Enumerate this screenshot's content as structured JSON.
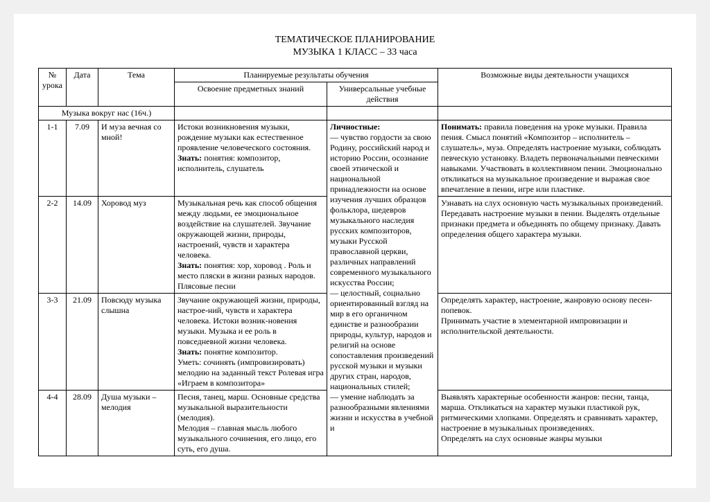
{
  "title_line1": "ТЕМАТИЧЕСКОЕ ПЛАНИРОВАНИЕ",
  "title_line2": "МУЗЫКА 1 КЛАСС – 33 часа",
  "headers": {
    "num": "№ урока",
    "date": "Дата",
    "theme": "Тема",
    "results": "Планируемые результаты обучения",
    "subject": "Освоение предметных знаний",
    "uud": "Универсальные учебные действия",
    "activities": "Возможные виды деятельности учащихся"
  },
  "section": "Музыка вокруг нас (16ч.)",
  "uud_personal_label": "Личностные:",
  "uud_personal_text": "— чувство гордости за свою Родину, российский народ и историю России, осознание своей этнической и национальной принадлежности на основе изучения лучших образцов фольклора, шедевров музыкального наследия русских композиторов, музыки Русской православной церкви, различных направлений современного музыкального искусства России;\n— целостный, социально ориентированный взгляд на мир в его органичном единстве и разнообразии природы, культур, народов и религий на основе сопоставления произведений русской музыки и музыки других стран, народов, национальных стилей;\n— умение наблюдать за разнообразными явлениями жизни и искусства в учебной и",
  "rows": [
    {
      "num": "1-1",
      "date": "7.09",
      "theme": "И муза вечная со мной!",
      "subject_plain": "Истоки возникновения музыки, рождение музыки как естественное проявление человеческого состояния.",
      "subject_know_label": "Знать:",
      "subject_know": " понятия: композитор, исполнитель, слушатель",
      "activities_label": "Понимать:",
      "activities": "  правила поведения на уроке музыки. Правила  пения. Смысл понятий «Композитор – исполнитель – слушатель», муза. Определять настроение музыки, соблюдать певческую установку. Владеть первоначальными певческими навыками. Участвовать в коллективном пении. Эмоционально откликаться на музыкальное произведение и выражая свое впечатление в пении, игре или пластике."
    },
    {
      "num": "2-2",
      "date": "14.09",
      "theme": "Хоровод муз",
      "subject_plain": "Музыкальная речь как способ общения между людьми, ее эмоциональное воздействие на слушателей. Звучание окружающей жизни, природы, настроений, чувств и характера человека.",
      "subject_know_label": "Знать:",
      "subject_know": " понятия: хор, хоровод . Роль и место пляски в жизни  разных народов. Плясовые песни",
      "activities_label": "",
      "activities": "Узнавать на слух основную часть музыкальных произведений. Передавать настроение музыки в пении. Выделять отдельные признаки предмета и объединять по общему признаку. Давать определения общего характера музыки."
    },
    {
      "num": "3-3",
      "date": "21.09",
      "theme": "Повсюду музыка слышна",
      "subject_plain": "Звучание окружающей жизни, природы, настрое-ний, чувств и характера человека. Истоки возник-новения музыки. Музыка и ее  роль в повседневной жизни человека.",
      "subject_know_label": "Знать:",
      "subject_know": " понятие композитор.\nУметь: сочинять (импровизировать) мелодию на заданный текст Ролевая игра «Играем в композитора»",
      "activities_label": "",
      "activities": "Определять характер, настроение, жанровую основу песен-попевок.\nПринимать участие в элементарной импровизации и исполнительской деятельности."
    },
    {
      "num": "4-4",
      "date": "28.09",
      "theme": "Душа музыки – мелодия",
      "subject_plain": "Песня, танец, марш. Основные средства музыкальной выразительности (мелодия).\nМелодия – главная мысль любого музыкального сочинения, его лицо, его суть, его душа.",
      "subject_know_label": "",
      "subject_know": "",
      "activities_label": "",
      "activities": "Выявлять характерные особенности  жанров: песни, танца, марша. Откликаться на характер музыки пластикой рук, ритмическими хлопками. Определять и сравнивать характер, настроение в музыкальных произведениях.\nОпределять на слух основные жанры музыки"
    }
  ]
}
